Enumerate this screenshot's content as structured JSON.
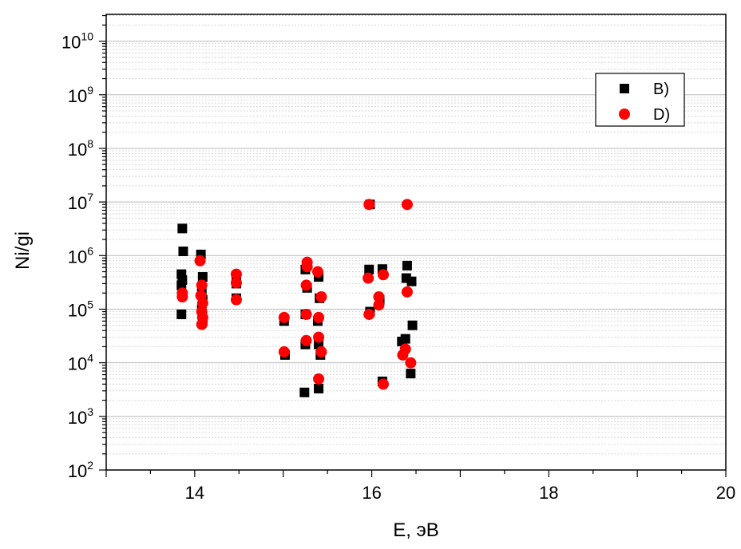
{
  "chart_data": {
    "type": "scatter",
    "xlabel": "E, эВ",
    "ylabel": "Ni/gi",
    "xlim": [
      13,
      20
    ],
    "ylim_log10": [
      2,
      10.5
    ],
    "yscale": "log",
    "x_ticks": [
      14,
      16,
      18,
      20
    ],
    "y_tick_exponents": [
      2,
      3,
      4,
      5,
      6,
      7,
      8,
      9,
      10
    ],
    "y_tick_base": "10",
    "grid": "horizontal major and minor (log)",
    "legend_position": "upper-right",
    "series": [
      {
        "name": "B)",
        "marker": "square",
        "color": "#000000",
        "points": [
          [
            13.86,
            3200000
          ],
          [
            13.87,
            1200000
          ],
          [
            13.85,
            450000
          ],
          [
            13.86,
            350000
          ],
          [
            13.85,
            280000
          ],
          [
            13.85,
            80000
          ],
          [
            14.07,
            1050000
          ],
          [
            14.09,
            400000
          ],
          [
            14.08,
            200000
          ],
          [
            14.09,
            150000
          ],
          [
            14.08,
            100000
          ],
          [
            14.09,
            60000
          ],
          [
            14.47,
            400000
          ],
          [
            14.47,
            300000
          ],
          [
            14.47,
            160000
          ],
          [
            15.01,
            60000
          ],
          [
            15.02,
            14000
          ],
          [
            15.25,
            550000
          ],
          [
            15.27,
            250000
          ],
          [
            15.25,
            80000
          ],
          [
            15.25,
            22000
          ],
          [
            15.24,
            2800
          ],
          [
            15.4,
            400000
          ],
          [
            15.41,
            160000
          ],
          [
            15.39,
            60000
          ],
          [
            15.4,
            22000
          ],
          [
            15.42,
            14000
          ],
          [
            15.4,
            3300
          ],
          [
            15.98,
            9000000
          ],
          [
            15.97,
            550000
          ],
          [
            15.98,
            90000
          ],
          [
            16.09,
            150000
          ],
          [
            16.12,
            560000
          ],
          [
            16.12,
            4500
          ],
          [
            16.4,
            650000
          ],
          [
            16.39,
            380000
          ],
          [
            16.45,
            330000
          ],
          [
            16.38,
            28000
          ],
          [
            16.34,
            25000
          ],
          [
            16.46,
            50000
          ],
          [
            16.44,
            6300
          ]
        ]
      },
      {
        "name": "D)",
        "marker": "circle",
        "color": "#ff0000",
        "points": [
          [
            13.86,
            200000
          ],
          [
            13.86,
            170000
          ],
          [
            14.06,
            800000
          ],
          [
            14.08,
            280000
          ],
          [
            14.07,
            180000
          ],
          [
            14.09,
            130000
          ],
          [
            14.08,
            90000
          ],
          [
            14.09,
            70000
          ],
          [
            14.08,
            52000
          ],
          [
            14.47,
            450000
          ],
          [
            14.47,
            310000
          ],
          [
            14.47,
            150000
          ],
          [
            15.01,
            70000
          ],
          [
            15.01,
            16000
          ],
          [
            15.27,
            750000
          ],
          [
            15.27,
            620000
          ],
          [
            15.26,
            280000
          ],
          [
            15.26,
            80000
          ],
          [
            15.26,
            26000
          ],
          [
            15.39,
            500000
          ],
          [
            15.43,
            170000
          ],
          [
            15.4,
            70000
          ],
          [
            15.4,
            30000
          ],
          [
            15.43,
            16000
          ],
          [
            15.4,
            5000
          ],
          [
            15.97,
            9000000
          ],
          [
            15.96,
            380000
          ],
          [
            15.97,
            80000
          ],
          [
            16.08,
            170000
          ],
          [
            16.08,
            120000
          ],
          [
            16.13,
            440000
          ],
          [
            16.13,
            4000
          ],
          [
            16.4,
            9000000
          ],
          [
            16.4,
            210000
          ],
          [
            16.38,
            18000
          ],
          [
            16.35,
            14000
          ],
          [
            16.44,
            10000
          ]
        ]
      }
    ]
  }
}
